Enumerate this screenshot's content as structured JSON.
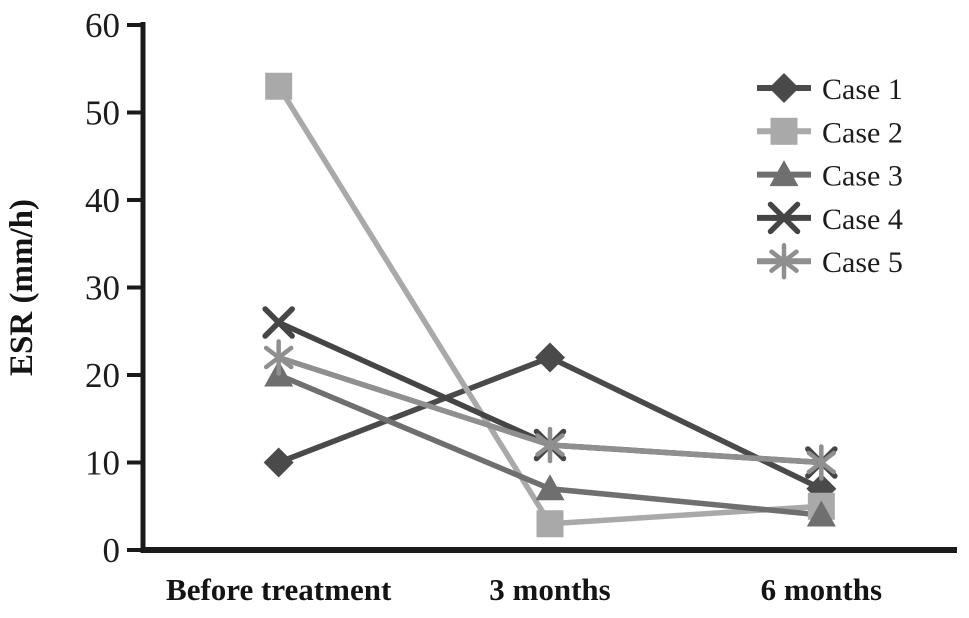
{
  "chart_data": {
    "type": "line",
    "title": "",
    "xlabel": "",
    "ylabel": "ESR (mm/h)",
    "ylim": [
      0,
      60
    ],
    "yticks": [
      0,
      10,
      20,
      30,
      40,
      50,
      60
    ],
    "grid": false,
    "legend_position": "top-right",
    "axis_color": "#1a1a1a",
    "text_color": "#1a1a1a",
    "categories": [
      "Before treatment",
      "3 months",
      "6 months"
    ],
    "series": [
      {
        "name": "Case 1",
        "marker": "diamond-marker",
        "color": "#4a4a4a",
        "values": [
          10,
          22,
          7
        ]
      },
      {
        "name": "Case 2",
        "marker": "square-marker",
        "color": "#a9a9a9",
        "values": [
          53,
          3,
          5
        ]
      },
      {
        "name": "Case 3",
        "marker": "triangle-marker",
        "color": "#6f6f6f",
        "values": [
          20,
          7,
          4
        ]
      },
      {
        "name": "Case 4",
        "marker": "x-marker",
        "color": "#454545",
        "values": [
          26,
          12,
          10
        ]
      },
      {
        "name": "Case 5",
        "marker": "asterisk-marker",
        "color": "#8f8f8f",
        "values": [
          22,
          12,
          10
        ]
      }
    ],
    "legend_labels": [
      "Case 1",
      "Case 2",
      "Case 3",
      "Case 4",
      "Case 5"
    ]
  }
}
